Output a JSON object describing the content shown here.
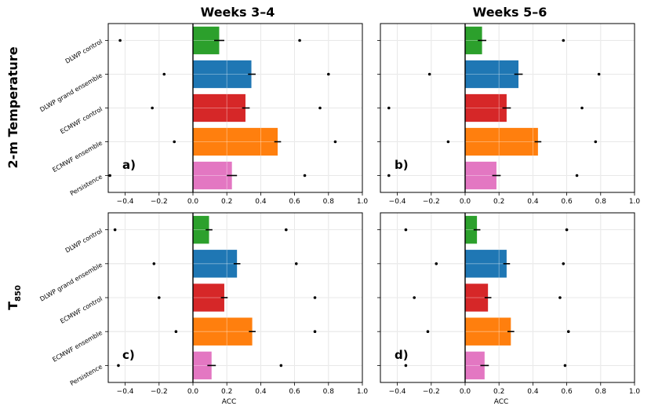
{
  "figure": {
    "col_titles": [
      "Weeks 3–4",
      "Weeks 5–6"
    ],
    "row_titles": [
      {
        "main": "2-m Temperature",
        "sub": ""
      },
      {
        "main": "T",
        "sub": "850"
      }
    ],
    "xlabel": "ACC",
    "colors": {
      "DLWP control": "#2ca02c",
      "DLWP grand ensemble": "#1f77b4",
      "ECMWF control": "#d62728",
      "ECMWF ensemble": "#ff7f0e",
      "Persistence": "#e377c2"
    }
  },
  "chart_data": [
    {
      "type": "bar",
      "orientation": "horizontal",
      "panel_label": "a)",
      "title": "Weeks 3–4",
      "row": "2-m Temperature",
      "xlabel": "",
      "xlim": [
        -0.5,
        1.0
      ],
      "xticks": [
        "−0.4",
        "−0.2",
        "0.0",
        "0.2",
        "0.4",
        "0.6",
        "0.8",
        "1.0"
      ],
      "grid": true,
      "categories": [
        "DLWP control",
        "DLWP grand ensemble",
        "ECMWF control",
        "ECMWF ensemble",
        "Persistence"
      ],
      "values": [
        0.155,
        0.345,
        0.31,
        0.5,
        0.23
      ],
      "error_bars": [
        [
          0.125,
          0.185
        ],
        [
          0.325,
          0.37
        ],
        [
          0.29,
          0.335
        ],
        [
          0.48,
          0.52
        ],
        [
          0.2,
          0.26
        ]
      ],
      "min_points": [
        -0.43,
        -0.17,
        -0.24,
        -0.11,
        -0.49
      ],
      "max_points": [
        0.63,
        0.8,
        0.75,
        0.84,
        0.66
      ]
    },
    {
      "type": "bar",
      "orientation": "horizontal",
      "panel_label": "b)",
      "title": "Weeks 5–6",
      "row": "2-m Temperature",
      "xlabel": "",
      "xlim": [
        -0.5,
        1.0
      ],
      "xticks": [
        "−0.4",
        "−0.2",
        "0.0",
        "0.2",
        "0.4",
        "0.6",
        "0.8",
        "1.0"
      ],
      "grid": true,
      "categories": [
        "DLWP control",
        "DLWP grand ensemble",
        "ECMWF control",
        "ECMWF ensemble",
        "Persistence"
      ],
      "values": [
        0.1,
        0.315,
        0.245,
        0.43,
        0.185
      ],
      "error_bars": [
        [
          0.075,
          0.125
        ],
        [
          0.29,
          0.34
        ],
        [
          0.22,
          0.27
        ],
        [
          0.41,
          0.45
        ],
        [
          0.16,
          0.21
        ]
      ],
      "min_points": [
        null,
        -0.21,
        -0.45,
        -0.1,
        -0.45
      ],
      "max_points": [
        0.58,
        0.79,
        0.69,
        0.77,
        0.66
      ]
    },
    {
      "type": "bar",
      "orientation": "horizontal",
      "panel_label": "c)",
      "title": "",
      "row": "T850",
      "xlabel": "ACC",
      "xlim": [
        -0.5,
        1.0
      ],
      "xticks": [
        "−0.4",
        "−0.2",
        "0.0",
        "0.2",
        "0.4",
        "0.6",
        "0.8",
        "1.0"
      ],
      "grid": true,
      "categories": [
        "DLWP control",
        "DLWP grand ensemble",
        "ECMWF control",
        "ECMWF ensemble",
        "Persistence"
      ],
      "values": [
        0.095,
        0.26,
        0.185,
        0.35,
        0.11
      ],
      "error_bars": [
        [
          0.075,
          0.115
        ],
        [
          0.24,
          0.28
        ],
        [
          0.165,
          0.205
        ],
        [
          0.33,
          0.37
        ],
        [
          0.085,
          0.135
        ]
      ],
      "min_points": [
        -0.46,
        -0.23,
        -0.2,
        -0.1,
        -0.44
      ],
      "max_points": [
        0.55,
        0.61,
        0.72,
        0.72,
        0.52
      ]
    },
    {
      "type": "bar",
      "orientation": "horizontal",
      "panel_label": "d)",
      "title": "",
      "row": "T850",
      "xlabel": "ACC",
      "xlim": [
        -0.5,
        1.0
      ],
      "xticks": [
        "−0.4",
        "−0.2",
        "0.0",
        "0.2",
        "0.4",
        "0.6",
        "0.8",
        "1.0"
      ],
      "grid": true,
      "categories": [
        "DLWP control",
        "DLWP grand ensemble",
        "ECMWF control",
        "ECMWF ensemble",
        "Persistence"
      ],
      "values": [
        0.07,
        0.245,
        0.135,
        0.27,
        0.115
      ],
      "error_bars": [
        [
          0.05,
          0.09
        ],
        [
          0.225,
          0.265
        ],
        [
          0.115,
          0.155
        ],
        [
          0.25,
          0.29
        ],
        [
          0.09,
          0.14
        ]
      ],
      "min_points": [
        -0.35,
        -0.17,
        -0.3,
        -0.22,
        -0.35
      ],
      "max_points": [
        0.6,
        0.58,
        0.56,
        0.61,
        0.59
      ]
    }
  ]
}
